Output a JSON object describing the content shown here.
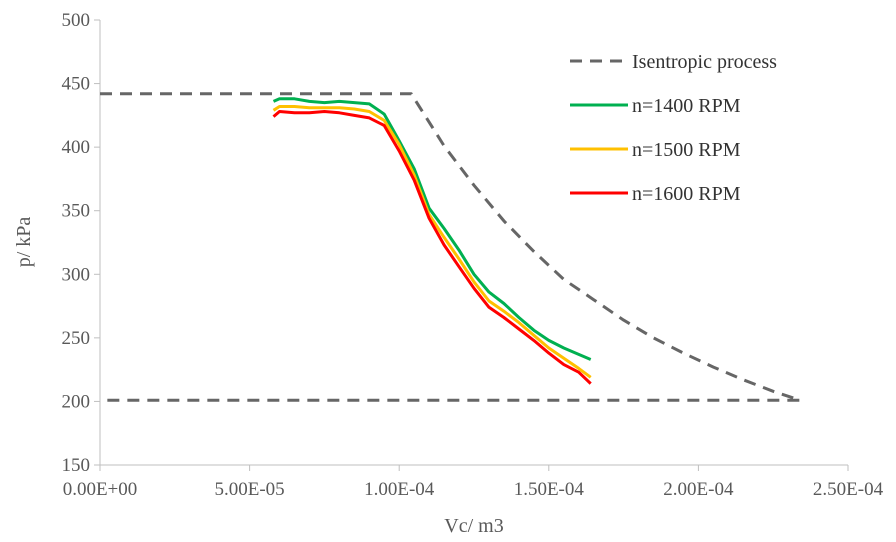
{
  "chart_data": {
    "type": "line",
    "title": "",
    "xlabel": "Vc/ m3",
    "ylabel": "p/ kPa",
    "xlim": [
      0,
      0.00025
    ],
    "ylim": [
      150,
      500
    ],
    "xticks": [
      0,
      5e-05,
      0.0001,
      0.00015,
      0.0002,
      0.00025
    ],
    "xtick_labels": [
      "0.00E+00",
      "5.00E-05",
      "1.00E-04",
      "1.50E-04",
      "2.00E-04",
      "2.50E-04"
    ],
    "yticks": [
      150,
      200,
      250,
      300,
      350,
      400,
      450,
      500
    ],
    "ytick_labels": [
      "150",
      "200",
      "250",
      "300",
      "350",
      "400",
      "450",
      "500"
    ],
    "grid": false,
    "legend_position": "right",
    "series": [
      {
        "name": "Isentropic process",
        "color": "#666666",
        "dash": true,
        "x": [
          0,
          0.000104,
          0.000104,
          0.000115,
          0.000125,
          0.000135,
          0.000145,
          0.000155,
          0.000165,
          0.000175,
          0.000185,
          0.000195,
          0.000205,
          0.000215,
          0.000225,
          0.000234,
          0.000234,
          0
        ],
        "y": [
          442,
          442,
          442,
          401,
          370,
          342,
          318,
          296,
          280,
          264,
          250,
          238,
          227,
          217,
          208,
          201,
          201,
          201
        ]
      },
      {
        "name": "n=1400 RPM",
        "color": "#00b050",
        "dash": false,
        "x": [
          5.8e-05,
          6e-05,
          6.5e-05,
          7e-05,
          7.5e-05,
          8e-05,
          8.5e-05,
          9e-05,
          9.5e-05,
          0.0001,
          0.000105,
          0.00011,
          0.000115,
          0.00012,
          0.000125,
          0.00013,
          0.000135,
          0.00014,
          0.000145,
          0.00015,
          0.000155,
          0.00016,
          0.000164
        ],
        "y": [
          436,
          438,
          438,
          436,
          435,
          436,
          435,
          434,
          426,
          405,
          383,
          352,
          336,
          319,
          300,
          286,
          277,
          266,
          256,
          248,
          242,
          237,
          233
        ]
      },
      {
        "name": "n=1500 RPM",
        "color": "#ffc000",
        "dash": false,
        "x": [
          5.8e-05,
          6e-05,
          6.5e-05,
          7e-05,
          7.5e-05,
          8e-05,
          8.5e-05,
          9e-05,
          9.5e-05,
          0.0001,
          0.000105,
          0.00011,
          0.000115,
          0.00012,
          0.000125,
          0.00013,
          0.000135,
          0.00014,
          0.000145,
          0.00015,
          0.000155,
          0.00016,
          0.000164
        ],
        "y": [
          429,
          432,
          432,
          431,
          431,
          431,
          430,
          428,
          421,
          402,
          378,
          347,
          329,
          312,
          294,
          279,
          271,
          262,
          252,
          242,
          234,
          226,
          219
        ]
      },
      {
        "name": "n=1600 RPM",
        "color": "#ff0000",
        "dash": false,
        "x": [
          5.8e-05,
          6e-05,
          6.5e-05,
          7e-05,
          7.5e-05,
          8e-05,
          8.5e-05,
          9e-05,
          9.5e-05,
          0.0001,
          0.000105,
          0.00011,
          0.000115,
          0.00012,
          0.000125,
          0.00013,
          0.000135,
          0.00014,
          0.000145,
          0.00015,
          0.000155,
          0.00016,
          0.000164
        ],
        "y": [
          424,
          428,
          427,
          427,
          428,
          427,
          425,
          423,
          417,
          397,
          374,
          344,
          323,
          306,
          289,
          274,
          266,
          257,
          248,
          238,
          229,
          223,
          214
        ]
      }
    ]
  }
}
